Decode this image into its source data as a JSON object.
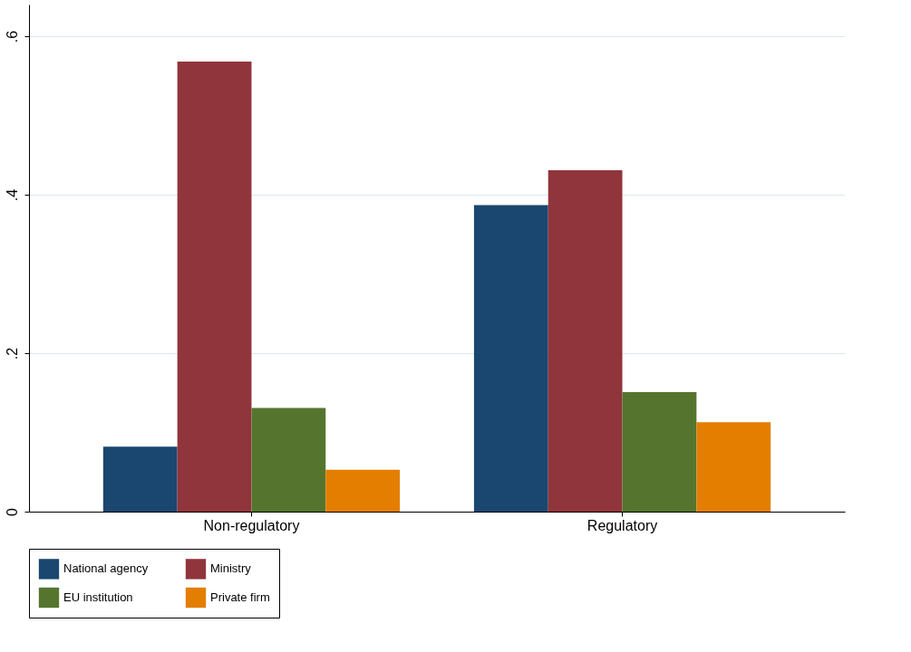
{
  "chart_data": {
    "type": "bar",
    "categories": [
      "Non-regulatory",
      "Regulatory"
    ],
    "series": [
      {
        "name": "National agency",
        "color": "#1a476f",
        "values": [
          0.082,
          0.387
        ]
      },
      {
        "name": "Ministry",
        "color": "#90353b",
        "values": [
          0.568,
          0.431
        ]
      },
      {
        "name": "EU institution",
        "color": "#55752f",
        "values": [
          0.131,
          0.151
        ]
      },
      {
        "name": "Private firm",
        "color": "#e37e00",
        "values": [
          0.053,
          0.113
        ]
      }
    ],
    "ylim": [
      0,
      0.64
    ],
    "yticks": [
      0,
      {
        "value": 0.2,
        "label": ".2"
      },
      {
        "value": 0.4,
        "label": ".4"
      },
      {
        "value": 0.6,
        "label": ".6"
      }
    ],
    "grid": "y",
    "legend": "bottom"
  }
}
